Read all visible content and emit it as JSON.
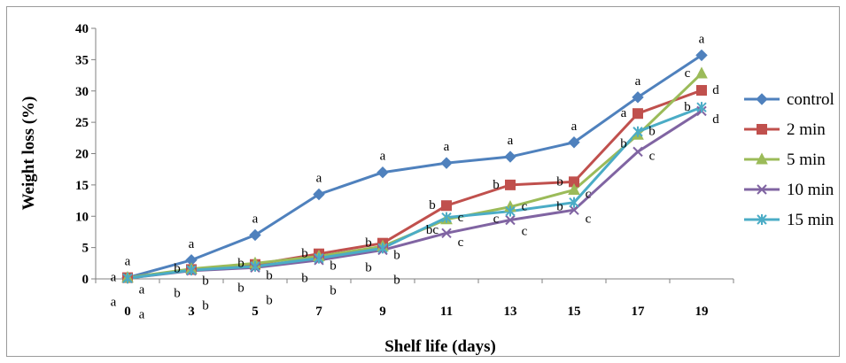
{
  "chart_data": {
    "type": "line",
    "xlabel": "Shelf life (days)",
    "ylabel": "Weight loss (%)",
    "x": [
      0,
      3,
      5,
      7,
      9,
      11,
      13,
      15,
      17,
      19
    ],
    "ylim": [
      0,
      40
    ],
    "yticks": [
      0,
      5,
      10,
      15,
      20,
      25,
      30,
      35,
      40
    ],
    "grid": false,
    "legend_position": "right",
    "series": [
      {
        "name": "control",
        "color": "#4f81bd",
        "marker": "diamond",
        "values": [
          0.2,
          3.0,
          7.0,
          13.5,
          17.0,
          18.5,
          19.5,
          21.8,
          29.0,
          35.7
        ],
        "letters": [
          "a",
          "a",
          "a",
          "a",
          "a",
          "a",
          "a",
          "a",
          "a",
          "a"
        ]
      },
      {
        "name": "2 min",
        "color": "#c0504d",
        "marker": "square",
        "values": [
          0.2,
          1.5,
          2.3,
          4.0,
          5.7,
          11.7,
          15.0,
          15.5,
          26.4,
          30.1
        ],
        "letters": [
          "a",
          "b",
          "b",
          "b",
          "b",
          "b",
          "b",
          "b",
          "a",
          "d"
        ]
      },
      {
        "name": "5 min",
        "color": "#9bbb59",
        "marker": "triangle",
        "values": [
          0.2,
          1.6,
          2.5,
          3.6,
          5.2,
          9.5,
          11.5,
          14.2,
          23.0,
          32.8
        ],
        "letters": [
          "a",
          "b",
          "b",
          "b",
          "b",
          "bc",
          "c",
          "c",
          "b",
          "c"
        ]
      },
      {
        "name": "10 min",
        "color": "#8064a2",
        "marker": "x",
        "values": [
          0.1,
          1.3,
          1.8,
          3.0,
          4.6,
          7.3,
          9.4,
          11.0,
          20.3,
          26.8
        ],
        "letters": [
          "a",
          "b",
          "b",
          "b",
          "b",
          "c",
          "c",
          "c",
          "c",
          "d"
        ]
      },
      {
        "name": "15 min",
        "color": "#4bacc6",
        "marker": "star",
        "values": [
          0.1,
          1.4,
          2.0,
          3.3,
          4.9,
          9.8,
          10.8,
          12.2,
          23.5,
          27.4
        ],
        "letters": [
          "a",
          "b",
          "b",
          "b",
          "b",
          "c",
          "c",
          "b",
          "b",
          "b"
        ]
      }
    ]
  }
}
